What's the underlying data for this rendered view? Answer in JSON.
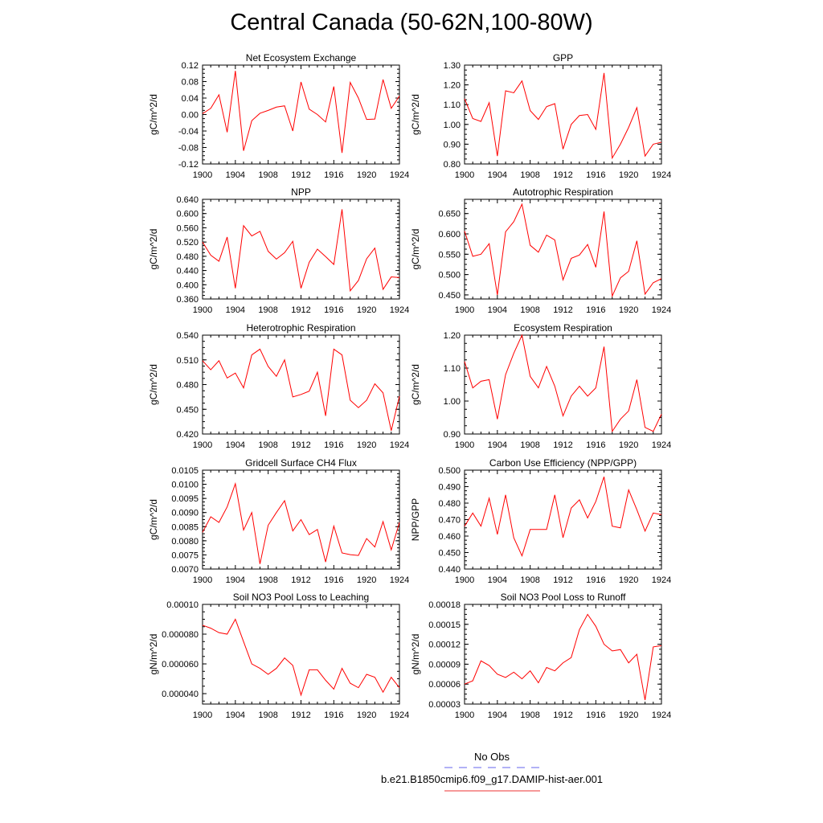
{
  "page_title": "Central Canada (50-62N,100-80W)",
  "legend": {
    "items": [
      {
        "label": "No Obs",
        "color": "#6666ee",
        "dash": true
      },
      {
        "label": "b.e21.B1850cmip6.f09_g17.DAMIP-hist-aer.001",
        "color": "#ee3333",
        "dash": false
      }
    ]
  },
  "chart_data": [
    {
      "type": "line",
      "title": "Net Ecosystem Exchange",
      "ylabel": "gC/m^2/d",
      "xlim": [
        1900,
        1924
      ],
      "xticks": [
        "1900",
        "1904",
        "1908",
        "1912",
        "1916",
        "1920",
        "1924"
      ],
      "ylim": [
        -0.12,
        0.12
      ],
      "yticks": [
        "-0.12",
        "-0.08",
        "-0.04",
        "0.00",
        "0.04",
        "0.08",
        "0.12"
      ],
      "series_color": "#ff0000",
      "x": [
        1900,
        1901,
        1902,
        1903,
        1904,
        1905,
        1906,
        1907,
        1908,
        1909,
        1910,
        1911,
        1912,
        1913,
        1914,
        1915,
        1916,
        1917,
        1918,
        1919,
        1920,
        1921,
        1922,
        1923,
        1924
      ],
      "values": [
        0.002,
        0.015,
        0.048,
        -0.043,
        0.106,
        -0.088,
        -0.015,
        0.003,
        0.01,
        0.018,
        0.021,
        -0.04,
        0.079,
        0.013,
        0.0,
        -0.018,
        0.068,
        -0.093,
        0.078,
        0.04,
        -0.012,
        -0.011,
        0.085,
        0.015,
        0.045
      ]
    },
    {
      "type": "line",
      "title": "GPP",
      "ylabel": "gC/m^2/d",
      "xlim": [
        1900,
        1924
      ],
      "xticks": [
        "1900",
        "1904",
        "1908",
        "1912",
        "1916",
        "1920",
        "1924"
      ],
      "ylim": [
        0.8,
        1.3
      ],
      "yticks": [
        "0.80",
        "0.90",
        "1.00",
        "1.10",
        "1.20",
        "1.30"
      ],
      "series_color": "#ff0000",
      "x": [
        1900,
        1901,
        1902,
        1903,
        1904,
        1905,
        1906,
        1907,
        1908,
        1909,
        1910,
        1911,
        1912,
        1913,
        1914,
        1915,
        1916,
        1917,
        1918,
        1919,
        1920,
        1921,
        1922,
        1923,
        1924
      ],
      "values": [
        1.13,
        1.03,
        1.015,
        1.11,
        0.84,
        1.17,
        1.16,
        1.22,
        1.07,
        1.025,
        1.09,
        1.105,
        0.875,
        1.0,
        1.045,
        1.05,
        0.975,
        1.26,
        0.83,
        0.9,
        0.985,
        1.085,
        0.84,
        0.9,
        0.91
      ]
    },
    {
      "type": "line",
      "title": "NPP",
      "ylabel": "gC/m^2/d",
      "xlim": [
        1900,
        1924
      ],
      "xticks": [
        "1900",
        "1904",
        "1908",
        "1912",
        "1916",
        "1920",
        "1924"
      ],
      "ylim": [
        0.36,
        0.64
      ],
      "yticks": [
        "0.360",
        "0.400",
        "0.440",
        "0.480",
        "0.520",
        "0.560",
        "0.600",
        "0.640"
      ],
      "series_color": "#ff0000",
      "x": [
        1900,
        1901,
        1902,
        1903,
        1904,
        1905,
        1906,
        1907,
        1908,
        1909,
        1910,
        1911,
        1912,
        1913,
        1914,
        1915,
        1916,
        1917,
        1918,
        1919,
        1920,
        1921,
        1922,
        1923,
        1924
      ],
      "values": [
        0.52,
        0.483,
        0.466,
        0.534,
        0.39,
        0.566,
        0.537,
        0.55,
        0.494,
        0.472,
        0.49,
        0.522,
        0.39,
        0.463,
        0.5,
        0.479,
        0.457,
        0.612,
        0.383,
        0.412,
        0.473,
        0.503,
        0.387,
        0.422,
        0.42
      ]
    },
    {
      "type": "line",
      "title": "Autotrophic Respiration",
      "ylabel": "gC/m^2/d",
      "xlim": [
        1900,
        1924
      ],
      "xticks": [
        "1900",
        "1904",
        "1908",
        "1912",
        "1916",
        "1920",
        "1924"
      ],
      "ylim": [
        0.44,
        0.685
      ],
      "yticks": [
        "0.450",
        "0.500",
        "0.550",
        "0.600",
        "0.650"
      ],
      "series_color": "#ff0000",
      "x": [
        1900,
        1901,
        1902,
        1903,
        1904,
        1905,
        1906,
        1907,
        1908,
        1909,
        1910,
        1911,
        1912,
        1913,
        1914,
        1915,
        1916,
        1917,
        1918,
        1919,
        1920,
        1921,
        1922,
        1923,
        1924
      ],
      "values": [
        0.607,
        0.545,
        0.55,
        0.576,
        0.45,
        0.605,
        0.63,
        0.673,
        0.572,
        0.555,
        0.597,
        0.585,
        0.487,
        0.54,
        0.548,
        0.574,
        0.518,
        0.655,
        0.447,
        0.492,
        0.508,
        0.583,
        0.452,
        0.48,
        0.49
      ]
    },
    {
      "type": "line",
      "title": "Heterotrophic Respiration",
      "ylabel": "gC/m^2/d",
      "xlim": [
        1900,
        1924
      ],
      "xticks": [
        "1900",
        "1904",
        "1908",
        "1912",
        "1916",
        "1920",
        "1924"
      ],
      "ylim": [
        0.42,
        0.54
      ],
      "yticks": [
        "0.420",
        "0.450",
        "0.480",
        "0.510",
        "0.540"
      ],
      "series_color": "#ff0000",
      "x": [
        1900,
        1901,
        1902,
        1903,
        1904,
        1905,
        1906,
        1907,
        1908,
        1909,
        1910,
        1911,
        1912,
        1913,
        1914,
        1915,
        1916,
        1917,
        1918,
        1919,
        1920,
        1921,
        1922,
        1923,
        1924
      ],
      "values": [
        0.509,
        0.498,
        0.509,
        0.488,
        0.494,
        0.476,
        0.516,
        0.523,
        0.502,
        0.49,
        0.51,
        0.465,
        0.468,
        0.472,
        0.495,
        0.442,
        0.523,
        0.516,
        0.461,
        0.452,
        0.461,
        0.481,
        0.47,
        0.424,
        0.466
      ]
    },
    {
      "type": "line",
      "title": "Ecosystem Respiration",
      "ylabel": "gC/m^2/d",
      "xlim": [
        1900,
        1924
      ],
      "xticks": [
        "1900",
        "1904",
        "1908",
        "1912",
        "1916",
        "1920",
        "1924"
      ],
      "ylim": [
        0.9,
        1.2
      ],
      "yticks": [
        "0.90",
        "1.00",
        "1.10",
        "1.20"
      ],
      "series_color": "#ff0000",
      "x": [
        1900,
        1901,
        1902,
        1903,
        1904,
        1905,
        1906,
        1907,
        1908,
        1909,
        1910,
        1911,
        1912,
        1913,
        1914,
        1915,
        1916,
        1917,
        1918,
        1919,
        1920,
        1921,
        1922,
        1923,
        1924
      ],
      "values": [
        1.12,
        1.04,
        1.06,
        1.065,
        0.945,
        1.08,
        1.145,
        1.2,
        1.075,
        1.04,
        1.105,
        1.045,
        0.955,
        1.015,
        1.045,
        1.015,
        1.04,
        1.165,
        0.908,
        0.945,
        0.97,
        1.065,
        0.92,
        0.908,
        0.96
      ]
    },
    {
      "type": "line",
      "title": "Gridcell Surface CH4 Flux",
      "ylabel": "gC/m^2/d",
      "xlim": [
        1900,
        1924
      ],
      "xticks": [
        "1900",
        "1904",
        "1908",
        "1912",
        "1916",
        "1920",
        "1924"
      ],
      "ylim": [
        0.007,
        0.0105
      ],
      "yticks": [
        "0.0070",
        "0.0075",
        "0.0080",
        "0.0085",
        "0.0090",
        "0.0095",
        "0.0100",
        "0.0105"
      ],
      "series_color": "#ff0000",
      "x": [
        1900,
        1901,
        1902,
        1903,
        1904,
        1905,
        1906,
        1907,
        1908,
        1909,
        1910,
        1911,
        1912,
        1913,
        1914,
        1915,
        1916,
        1917,
        1918,
        1919,
        1920,
        1921,
        1922,
        1923,
        1924
      ],
      "values": [
        0.0083,
        0.00885,
        0.00865,
        0.0092,
        0.01002,
        0.00838,
        0.009,
        0.00718,
        0.00855,
        0.009,
        0.00942,
        0.00835,
        0.00875,
        0.00822,
        0.0084,
        0.00725,
        0.00852,
        0.00757,
        0.00751,
        0.00748,
        0.00808,
        0.00778,
        0.00868,
        0.00768,
        0.00865
      ]
    },
    {
      "type": "line",
      "title": "Carbon Use Efficiency (NPP/GPP)",
      "ylabel": "NPP/GPP",
      "xlim": [
        1900,
        1924
      ],
      "xticks": [
        "1900",
        "1904",
        "1908",
        "1912",
        "1916",
        "1920",
        "1924"
      ],
      "ylim": [
        0.44,
        0.5
      ],
      "yticks": [
        "0.440",
        "0.450",
        "0.460",
        "0.470",
        "0.480",
        "0.490",
        "0.500"
      ],
      "series_color": "#ff0000",
      "x": [
        1900,
        1901,
        1902,
        1903,
        1904,
        1905,
        1906,
        1907,
        1908,
        1909,
        1910,
        1911,
        1912,
        1913,
        1914,
        1915,
        1916,
        1917,
        1918,
        1919,
        1920,
        1921,
        1922,
        1923,
        1924
      ],
      "values": [
        0.466,
        0.474,
        0.466,
        0.483,
        0.461,
        0.485,
        0.459,
        0.448,
        0.464,
        0.464,
        0.464,
        0.485,
        0.459,
        0.477,
        0.482,
        0.471,
        0.481,
        0.496,
        0.466,
        0.465,
        0.488,
        0.476,
        0.463,
        0.474,
        0.473
      ]
    },
    {
      "type": "line",
      "title": "Soil NO3 Pool Loss to Leaching",
      "ylabel": "gN/m^2/d",
      "xlim": [
        1900,
        1924
      ],
      "xticks": [
        "1900",
        "1904",
        "1908",
        "1912",
        "1916",
        "1920",
        "1924"
      ],
      "ylim": [
        3.3e-05,
        0.0001
      ],
      "yticks": [
        "0.000040",
        "0.000060",
        "0.000080",
        "0.00010"
      ],
      "series_color": "#ff0000",
      "x": [
        1900,
        1901,
        1902,
        1903,
        1904,
        1905,
        1906,
        1907,
        1908,
        1909,
        1910,
        1911,
        1912,
        1913,
        1914,
        1915,
        1916,
        1917,
        1918,
        1919,
        1920,
        1921,
        1922,
        1923,
        1924
      ],
      "values": [
        8.6e-05,
        8.4e-05,
        8.1e-05,
        8e-05,
        9e-05,
        7.5e-05,
        6e-05,
        5.7e-05,
        5.3e-05,
        5.7e-05,
        6.4e-05,
        5.9e-05,
        3.9e-05,
        5.6e-05,
        5.6e-05,
        4.9e-05,
        4.3e-05,
        5.7e-05,
        4.7e-05,
        4.4e-05,
        5.3e-05,
        5.1e-05,
        4.1e-05,
        5.1e-05,
        4.4e-05
      ]
    },
    {
      "type": "line",
      "title": "Soil NO3 Pool Loss to Runoff",
      "ylabel": "gN/m^2/d",
      "xlim": [
        1900,
        1924
      ],
      "xticks": [
        "1900",
        "1904",
        "1908",
        "1912",
        "1916",
        "1920",
        "1924"
      ],
      "ylim": [
        3e-05,
        0.00018
      ],
      "yticks": [
        "0.00003",
        "0.00006",
        "0.00009",
        "0.00012",
        "0.00015",
        "0.00018"
      ],
      "series_color": "#ff0000",
      "x": [
        1900,
        1901,
        1902,
        1903,
        1904,
        1905,
        1906,
        1907,
        1908,
        1909,
        1910,
        1911,
        1912,
        1913,
        1914,
        1915,
        1916,
        1917,
        1918,
        1919,
        1920,
        1921,
        1922,
        1923,
        1924
      ],
      "values": [
        6e-05,
        6.5e-05,
        9.5e-05,
        8.8e-05,
        7.5e-05,
        7e-05,
        7.8e-05,
        6.8e-05,
        8e-05,
        6.2e-05,
        8.5e-05,
        8e-05,
        9.2e-05,
        0.0001,
        0.000142,
        0.000165,
        0.000147,
        0.00012,
        0.00011,
        0.000112,
        9.2e-05,
        0.000105,
        3.6e-05,
        0.000116,
        0.000118
      ]
    }
  ]
}
